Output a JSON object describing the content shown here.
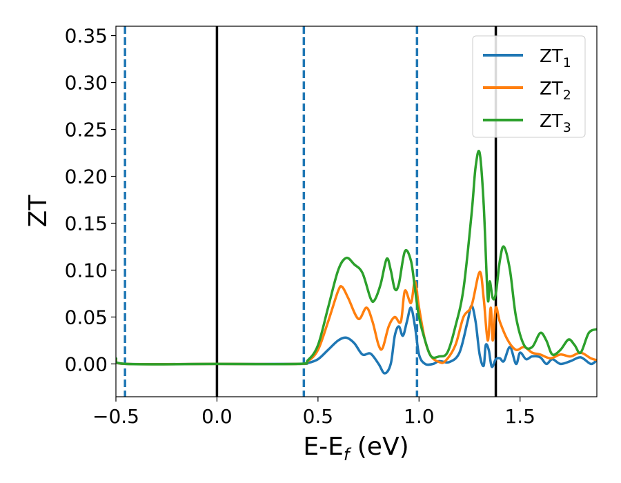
{
  "chart_data": {
    "type": "line",
    "xlabel": "E-E",
    "xlabel_sub": "f",
    "xlabel_unit": " (eV)",
    "ylabel": "ZT",
    "xlim": [
      -0.5,
      1.88
    ],
    "ylim": [
      -0.035,
      0.36
    ],
    "xticks": [
      -0.5,
      0.0,
      0.5,
      1.0,
      1.5
    ],
    "xtick_labels": [
      "−0.5",
      "0.0",
      "0.5",
      "1.0",
      "1.5"
    ],
    "yticks": [
      0.0,
      0.05,
      0.1,
      0.15,
      0.2,
      0.25,
      0.3,
      0.35
    ],
    "ytick_labels": [
      "0.00",
      "0.05",
      "0.10",
      "0.15",
      "0.20",
      "0.25",
      "0.30",
      "0.35"
    ],
    "grid": false,
    "legend_position": "top-right",
    "vlines": [
      {
        "x": -0.455,
        "style": "dashed",
        "color": "#1f77b4"
      },
      {
        "x": 0.0,
        "style": "solid",
        "color": "#000000"
      },
      {
        "x": 0.43,
        "style": "dashed",
        "color": "#1f77b4"
      },
      {
        "x": 0.99,
        "style": "dashed",
        "color": "#1f77b4"
      },
      {
        "x": 1.38,
        "style": "solid",
        "color": "#000000"
      }
    ],
    "series": [
      {
        "name": "ZT",
        "subscript": "1",
        "color": "#1f77b4",
        "points": [
          [
            -0.5,
            0.004
          ],
          [
            -0.45,
            0.0
          ],
          [
            0.0,
            0.0
          ],
          [
            0.4,
            0.0
          ],
          [
            0.45,
            0.001
          ],
          [
            0.5,
            0.005
          ],
          [
            0.55,
            0.015
          ],
          [
            0.6,
            0.025
          ],
          [
            0.64,
            0.028
          ],
          [
            0.68,
            0.022
          ],
          [
            0.72,
            0.01
          ],
          [
            0.76,
            0.011
          ],
          [
            0.8,
            0.0
          ],
          [
            0.83,
            -0.01
          ],
          [
            0.86,
            0.0
          ],
          [
            0.88,
            0.03
          ],
          [
            0.9,
            0.04
          ],
          [
            0.92,
            0.03
          ],
          [
            0.94,
            0.045
          ],
          [
            0.96,
            0.06
          ],
          [
            0.98,
            0.04
          ],
          [
            1.0,
            0.01
          ],
          [
            1.03,
            0.0
          ],
          [
            1.07,
            0.0
          ],
          [
            1.1,
            0.003
          ],
          [
            1.15,
            0.002
          ],
          [
            1.2,
            0.012
          ],
          [
            1.24,
            0.045
          ],
          [
            1.26,
            0.062
          ],
          [
            1.28,
            0.045
          ],
          [
            1.3,
            0.01
          ],
          [
            1.32,
            -0.002
          ],
          [
            1.33,
            0.02
          ],
          [
            1.345,
            0.015
          ],
          [
            1.36,
            -0.003
          ],
          [
            1.38,
            0.005
          ],
          [
            1.4,
            0.006
          ],
          [
            1.42,
            0.003
          ],
          [
            1.45,
            0.018
          ],
          [
            1.48,
            0.0
          ],
          [
            1.5,
            0.012
          ],
          [
            1.53,
            0.005
          ],
          [
            1.56,
            0.008
          ],
          [
            1.6,
            0.007
          ],
          [
            1.63,
            0.0
          ],
          [
            1.66,
            0.005
          ],
          [
            1.7,
            0.0
          ],
          [
            1.75,
            0.003
          ],
          [
            1.8,
            0.007
          ],
          [
            1.85,
            0.0
          ],
          [
            1.88,
            0.004
          ]
        ]
      },
      {
        "name": "ZT",
        "subscript": "2",
        "color": "#ff7f0e",
        "points": [
          [
            -0.5,
            0.005
          ],
          [
            -0.45,
            0.0
          ],
          [
            0.0,
            0.0
          ],
          [
            0.4,
            0.0
          ],
          [
            0.45,
            0.003
          ],
          [
            0.5,
            0.015
          ],
          [
            0.55,
            0.045
          ],
          [
            0.6,
            0.078
          ],
          [
            0.62,
            0.082
          ],
          [
            0.65,
            0.07
          ],
          [
            0.7,
            0.048
          ],
          [
            0.74,
            0.06
          ],
          [
            0.77,
            0.045
          ],
          [
            0.8,
            0.02
          ],
          [
            0.82,
            0.017
          ],
          [
            0.85,
            0.04
          ],
          [
            0.88,
            0.05
          ],
          [
            0.91,
            0.045
          ],
          [
            0.93,
            0.078
          ],
          [
            0.96,
            0.065
          ],
          [
            0.98,
            0.088
          ],
          [
            1.0,
            0.06
          ],
          [
            1.03,
            0.025
          ],
          [
            1.06,
            0.008
          ],
          [
            1.1,
            0.002
          ],
          [
            1.13,
            0.003
          ],
          [
            1.18,
            0.02
          ],
          [
            1.22,
            0.05
          ],
          [
            1.26,
            0.062
          ],
          [
            1.3,
            0.098
          ],
          [
            1.32,
            0.07
          ],
          [
            1.34,
            0.025
          ],
          [
            1.355,
            0.06
          ],
          [
            1.365,
            0.025
          ],
          [
            1.38,
            0.06
          ],
          [
            1.4,
            0.045
          ],
          [
            1.44,
            0.025
          ],
          [
            1.48,
            0.015
          ],
          [
            1.52,
            0.018
          ],
          [
            1.56,
            0.012
          ],
          [
            1.6,
            0.01
          ],
          [
            1.65,
            0.006
          ],
          [
            1.7,
            0.01
          ],
          [
            1.75,
            0.008
          ],
          [
            1.8,
            0.012
          ],
          [
            1.85,
            0.006
          ],
          [
            1.88,
            0.004
          ]
        ]
      },
      {
        "name": "ZT",
        "subscript": "3",
        "color": "#2ca02c",
        "points": [
          [
            -0.5,
            0.006
          ],
          [
            -0.45,
            0.0
          ],
          [
            0.0,
            0.0
          ],
          [
            0.4,
            0.0
          ],
          [
            0.45,
            0.004
          ],
          [
            0.5,
            0.02
          ],
          [
            0.55,
            0.06
          ],
          [
            0.6,
            0.1
          ],
          [
            0.64,
            0.113
          ],
          [
            0.68,
            0.106
          ],
          [
            0.72,
            0.097
          ],
          [
            0.76,
            0.07
          ],
          [
            0.78,
            0.068
          ],
          [
            0.81,
            0.085
          ],
          [
            0.84,
            0.112
          ],
          [
            0.86,
            0.1
          ],
          [
            0.88,
            0.08
          ],
          [
            0.9,
            0.085
          ],
          [
            0.93,
            0.12
          ],
          [
            0.96,
            0.11
          ],
          [
            0.98,
            0.08
          ],
          [
            1.0,
            0.05
          ],
          [
            1.03,
            0.025
          ],
          [
            1.06,
            0.008
          ],
          [
            1.1,
            0.008
          ],
          [
            1.14,
            0.012
          ],
          [
            1.18,
            0.04
          ],
          [
            1.22,
            0.08
          ],
          [
            1.26,
            0.16
          ],
          [
            1.28,
            0.21
          ],
          [
            1.3,
            0.225
          ],
          [
            1.32,
            0.17
          ],
          [
            1.34,
            0.07
          ],
          [
            1.35,
            0.088
          ],
          [
            1.365,
            0.07
          ],
          [
            1.38,
            0.075
          ],
          [
            1.4,
            0.11
          ],
          [
            1.42,
            0.125
          ],
          [
            1.45,
            0.1
          ],
          [
            1.48,
            0.05
          ],
          [
            1.52,
            0.02
          ],
          [
            1.56,
            0.018
          ],
          [
            1.6,
            0.033
          ],
          [
            1.63,
            0.025
          ],
          [
            1.66,
            0.01
          ],
          [
            1.7,
            0.015
          ],
          [
            1.74,
            0.026
          ],
          [
            1.77,
            0.02
          ],
          [
            1.8,
            0.012
          ],
          [
            1.84,
            0.033
          ],
          [
            1.88,
            0.037
          ]
        ]
      }
    ]
  }
}
